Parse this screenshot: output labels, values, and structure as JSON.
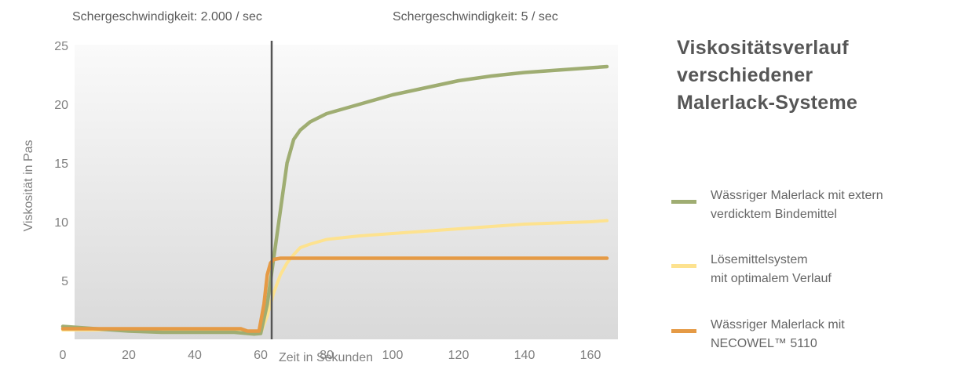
{
  "header": {
    "shear_left": "Schergeschwindigkeit: 2.000 / sec",
    "shear_right": "Schergeschwindigkeit: 5 / sec"
  },
  "title_lines": [
    "Viskositätsverlauf",
    "verschiedener",
    "Malerlack-Systeme"
  ],
  "legend": [
    {
      "lines": [
        "Wässriger Malerlack mit extern",
        "verdicktem Bindemittel"
      ],
      "color": "#9fad72"
    },
    {
      "lines": [
        "Lösemittelsystem",
        "mit optimalem Verlauf"
      ],
      "color": "#fde28f"
    },
    {
      "lines": [
        "Wässriger Malerlack mit",
        "NECOWEL™ 5110"
      ],
      "color": "#e59a45"
    }
  ],
  "chart_data": {
    "type": "line",
    "xlabel": "Zeit in Sekunden",
    "ylabel": "Viskosität in Pas",
    "xlim": [
      0,
      165
    ],
    "ylim": [
      0,
      25
    ],
    "x_ticks": [
      0,
      20,
      40,
      60,
      80,
      100,
      120,
      140,
      160
    ],
    "y_ticks": [
      5,
      10,
      15,
      20,
      25
    ],
    "marker_x": 60,
    "grid": false,
    "legend_position": "right",
    "series": [
      {
        "name": "Wässriger Malerlack mit extern verdicktem Bindemittel",
        "color": "#9fad72",
        "points": [
          [
            0,
            1.1
          ],
          [
            10,
            0.9
          ],
          [
            20,
            0.7
          ],
          [
            30,
            0.6
          ],
          [
            40,
            0.6
          ],
          [
            52,
            0.6
          ],
          [
            56,
            0.5
          ],
          [
            58,
            0.45
          ],
          [
            60,
            0.5
          ],
          [
            62,
            3
          ],
          [
            64,
            7
          ],
          [
            66,
            11
          ],
          [
            68,
            15
          ],
          [
            70,
            17
          ],
          [
            72,
            17.8
          ],
          [
            75,
            18.5
          ],
          [
            80,
            19.2
          ],
          [
            90,
            20
          ],
          [
            100,
            20.8
          ],
          [
            110,
            21.4
          ],
          [
            120,
            22
          ],
          [
            130,
            22.4
          ],
          [
            140,
            22.7
          ],
          [
            150,
            22.9
          ],
          [
            160,
            23.1
          ],
          [
            165,
            23.2
          ]
        ]
      },
      {
        "name": "Lösemittelsystem mit optimalem Verlauf",
        "color": "#fde28f",
        "points": [
          [
            0,
            0.8
          ],
          [
            20,
            0.8
          ],
          [
            40,
            0.8
          ],
          [
            52,
            0.8
          ],
          [
            56,
            0.7
          ],
          [
            58,
            0.6
          ],
          [
            60,
            0.5
          ],
          [
            62,
            2
          ],
          [
            64,
            4
          ],
          [
            66,
            5.5
          ],
          [
            68,
            6.5
          ],
          [
            70,
            7.2
          ],
          [
            72,
            7.8
          ],
          [
            75,
            8.1
          ],
          [
            80,
            8.5
          ],
          [
            90,
            8.8
          ],
          [
            100,
            9
          ],
          [
            110,
            9.2
          ],
          [
            120,
            9.4
          ],
          [
            130,
            9.6
          ],
          [
            140,
            9.8
          ],
          [
            150,
            9.9
          ],
          [
            160,
            10
          ],
          [
            165,
            10.1
          ]
        ]
      },
      {
        "name": "Wässriger Malerlack mit NECOWEL™ 5110",
        "color": "#e59a45",
        "points": [
          [
            0,
            0.9
          ],
          [
            10,
            0.9
          ],
          [
            20,
            0.9
          ],
          [
            30,
            0.9
          ],
          [
            40,
            0.9
          ],
          [
            50,
            0.9
          ],
          [
            54,
            0.9
          ],
          [
            56,
            0.7
          ],
          [
            58,
            0.7
          ],
          [
            59.5,
            0.7
          ],
          [
            61,
            3
          ],
          [
            62,
            5.5
          ],
          [
            63,
            6.5
          ],
          [
            64,
            6.8
          ],
          [
            66,
            6.9
          ],
          [
            70,
            6.9
          ],
          [
            80,
            6.9
          ],
          [
            100,
            6.9
          ],
          [
            120,
            6.9
          ],
          [
            140,
            6.9
          ],
          [
            160,
            6.9
          ],
          [
            165,
            6.9
          ]
        ]
      }
    ]
  }
}
